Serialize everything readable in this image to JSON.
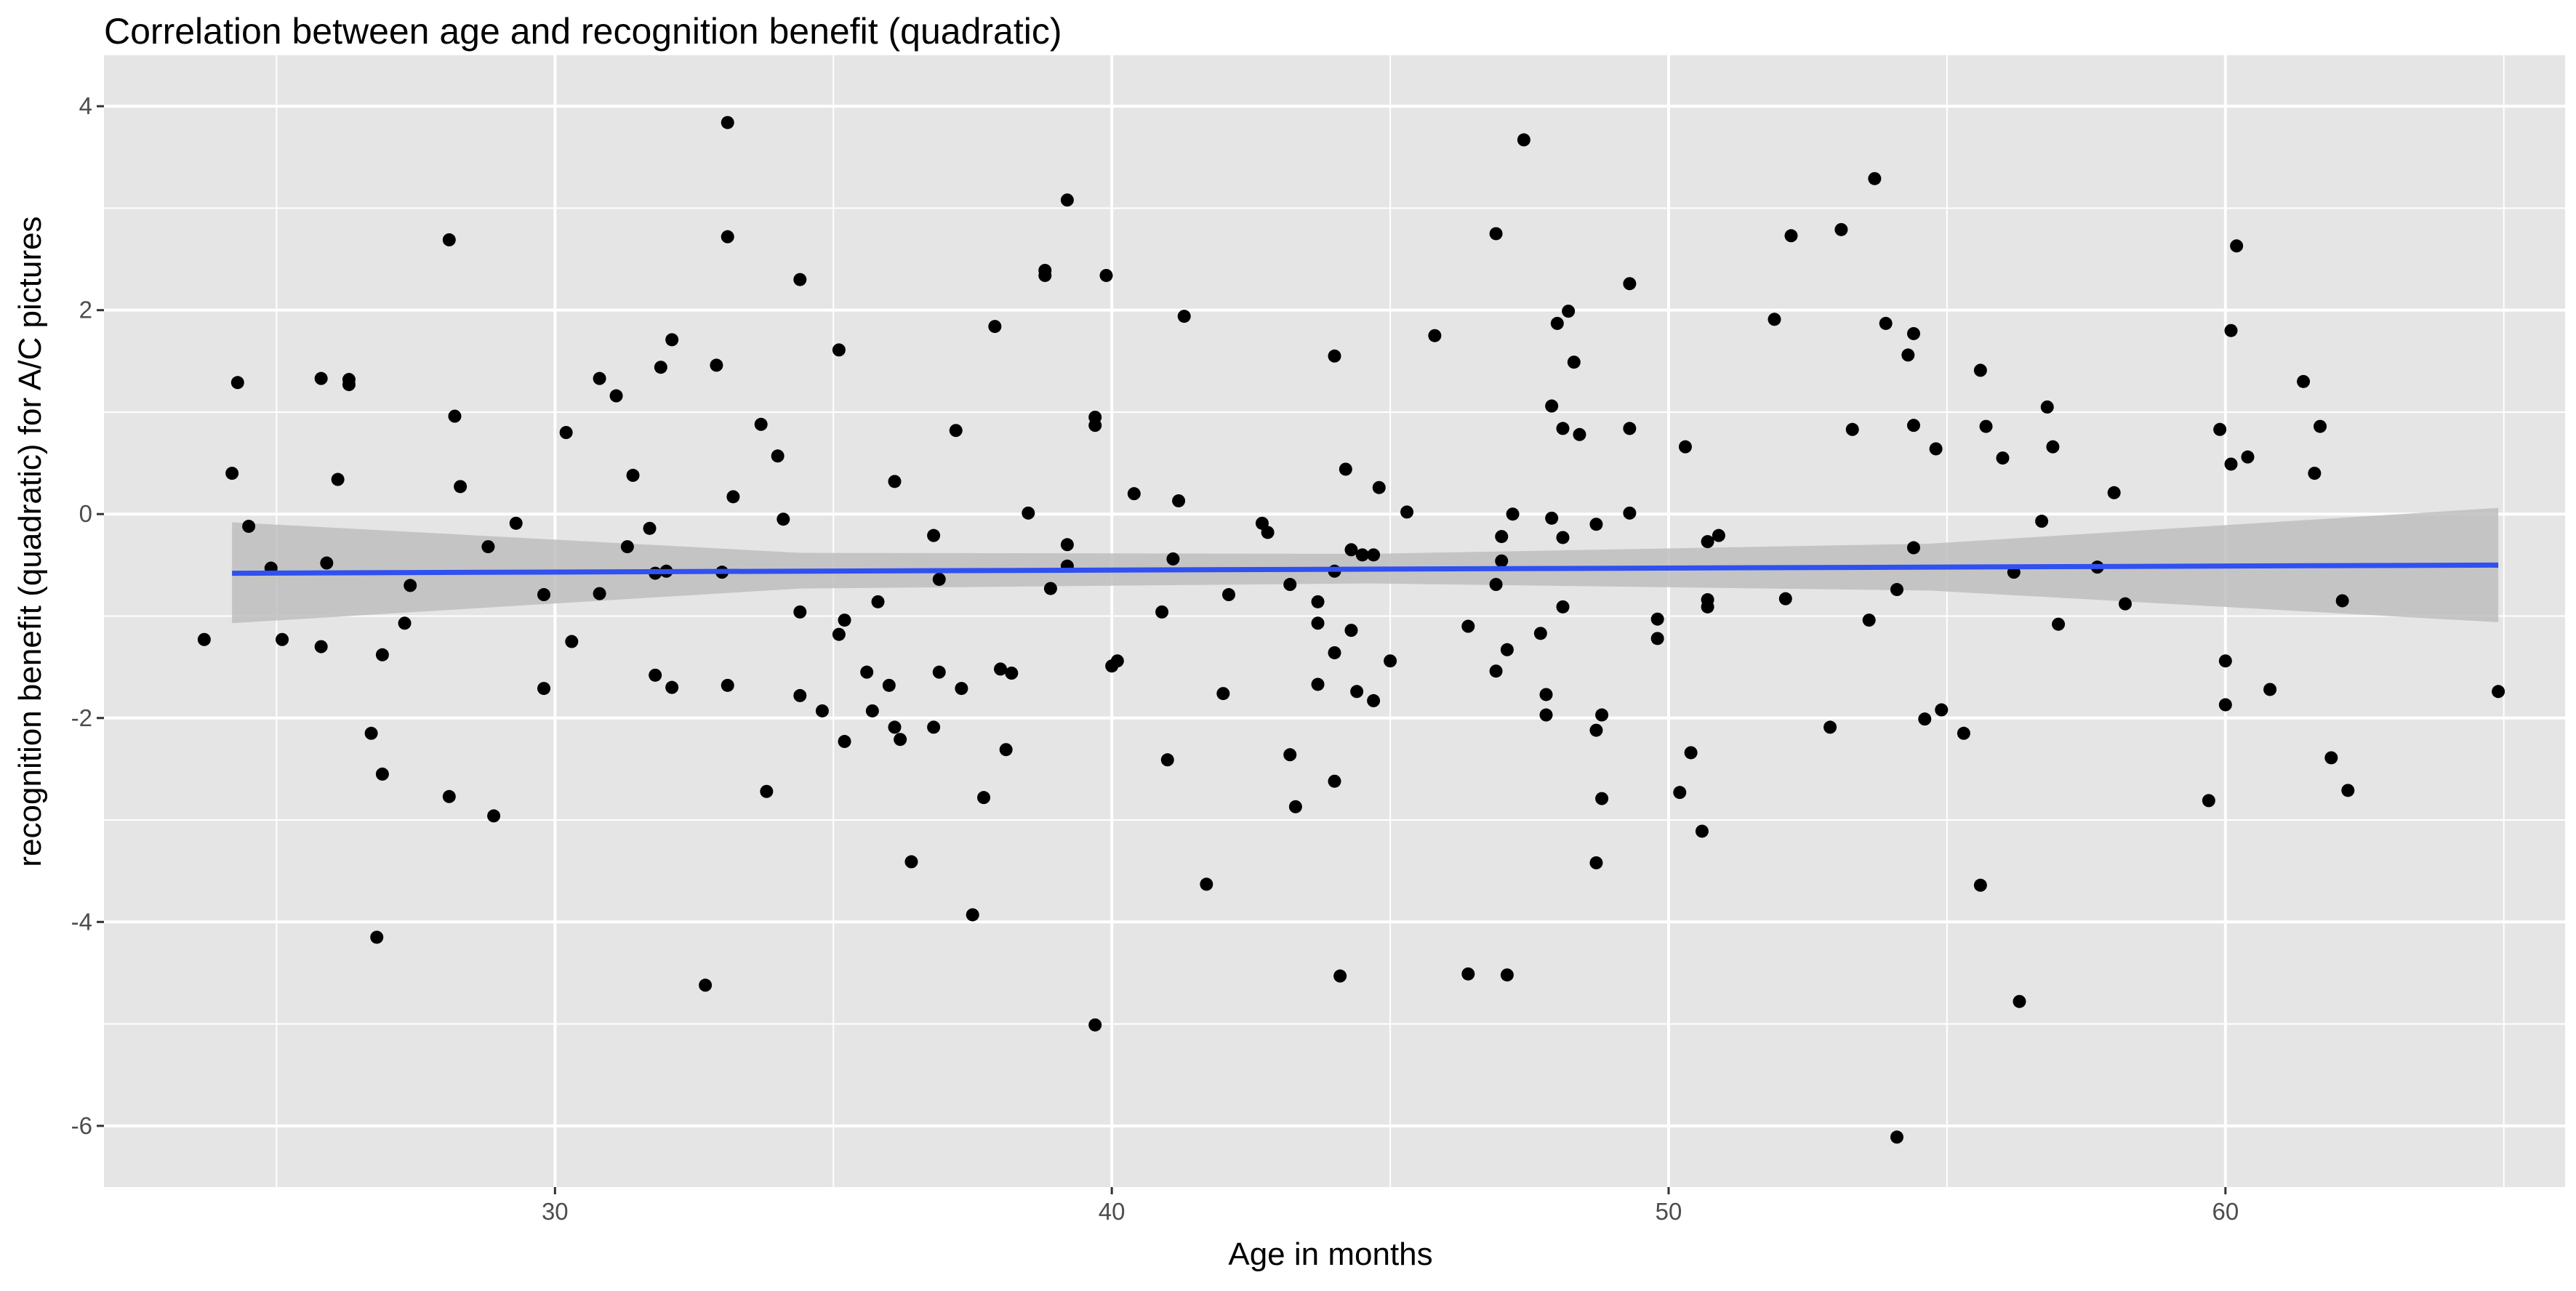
{
  "chart_data": {
    "type": "scatter",
    "title": "Correlation between age and recognition benefit (quadratic)",
    "xlabel": "Age in months",
    "ylabel": "recognition benefit (quadratic) for A/C pictures",
    "xlim": [
      21.9,
      66.1
    ],
    "ylim": [
      -6.6,
      4.5
    ],
    "x_ticks": [
      30,
      40,
      50,
      60
    ],
    "x_tick_labels": [
      "30",
      "40",
      "50",
      "60"
    ],
    "y_ticks": [
      4,
      2,
      0,
      -2,
      -4,
      -6
    ],
    "y_tick_labels": [
      "4",
      "2",
      "0",
      "-2",
      "-4",
      "-6"
    ],
    "grid": true,
    "legend": "none",
    "colors": {
      "panel_background": "#E5E5E5",
      "grid_line": "#FFFFFF",
      "point": "#000000",
      "fit_line": "#3050F0",
      "confidence_band": "#BEBEBE"
    },
    "series": [
      {
        "type": "scatter",
        "points": [
          [
            23.7,
            -1.23
          ],
          [
            24.2,
            0.4
          ],
          [
            24.3,
            1.29
          ],
          [
            24.5,
            -0.12
          ],
          [
            24.9,
            -0.53
          ],
          [
            25.1,
            -1.23
          ],
          [
            25.8,
            1.33
          ],
          [
            25.8,
            -1.3
          ],
          [
            25.9,
            -0.48
          ],
          [
            26.1,
            0.34
          ],
          [
            26.3,
            1.27
          ],
          [
            26.3,
            1.32
          ],
          [
            26.7,
            -2.15
          ],
          [
            26.8,
            -4.15
          ],
          [
            26.9,
            -2.55
          ],
          [
            26.9,
            -1.38
          ],
          [
            27.3,
            -1.07
          ],
          [
            27.4,
            -0.7
          ],
          [
            28.1,
            2.69
          ],
          [
            28.1,
            -2.77
          ],
          [
            28.2,
            0.96
          ],
          [
            28.3,
            0.27
          ],
          [
            28.8,
            -0.32
          ],
          [
            28.9,
            -2.96
          ],
          [
            29.3,
            -0.09
          ],
          [
            29.8,
            -0.79
          ],
          [
            29.8,
            -1.71
          ],
          [
            30.2,
            0.8
          ],
          [
            30.3,
            -1.25
          ],
          [
            30.8,
            1.33
          ],
          [
            30.8,
            -0.78
          ],
          [
            31.1,
            1.16
          ],
          [
            31.3,
            -0.32
          ],
          [
            31.4,
            0.38
          ],
          [
            31.7,
            -0.14
          ],
          [
            31.8,
            -0.58
          ],
          [
            31.8,
            -1.58
          ],
          [
            31.9,
            1.44
          ],
          [
            32.0,
            -0.56
          ],
          [
            32.1,
            1.71
          ],
          [
            32.1,
            -1.7
          ],
          [
            32.7,
            -4.62
          ],
          [
            32.9,
            1.46
          ],
          [
            33.0,
            -0.57
          ],
          [
            33.1,
            2.72
          ],
          [
            33.1,
            3.84
          ],
          [
            33.1,
            -1.68
          ],
          [
            33.2,
            0.17
          ],
          [
            33.7,
            0.88
          ],
          [
            33.8,
            -2.72
          ],
          [
            34.0,
            0.57
          ],
          [
            34.1,
            -0.05
          ],
          [
            34.4,
            -0.96
          ],
          [
            34.4,
            -1.78
          ],
          [
            34.4,
            2.3
          ],
          [
            34.8,
            -1.93
          ],
          [
            35.1,
            -1.18
          ],
          [
            35.1,
            1.61
          ],
          [
            35.2,
            -2.23
          ],
          [
            35.2,
            -1.04
          ],
          [
            35.6,
            -1.55
          ],
          [
            35.7,
            -1.93
          ],
          [
            35.8,
            -0.86
          ],
          [
            36.0,
            -1.68
          ],
          [
            36.1,
            -2.09
          ],
          [
            36.1,
            0.32
          ],
          [
            36.2,
            -2.21
          ],
          [
            36.4,
            -3.41
          ],
          [
            36.8,
            -2.09
          ],
          [
            36.8,
            -0.21
          ],
          [
            36.9,
            -0.64
          ],
          [
            36.9,
            -1.55
          ],
          [
            37.2,
            0.82
          ],
          [
            37.3,
            -1.71
          ],
          [
            37.5,
            -3.93
          ],
          [
            37.7,
            -2.78
          ],
          [
            37.9,
            1.84
          ],
          [
            38.0,
            -1.52
          ],
          [
            38.1,
            -2.31
          ],
          [
            38.2,
            -1.56
          ],
          [
            38.5,
            0.01
          ],
          [
            38.8,
            2.39
          ],
          [
            38.8,
            2.34
          ],
          [
            38.9,
            -0.73
          ],
          [
            39.2,
            3.08
          ],
          [
            39.2,
            -0.3
          ],
          [
            39.2,
            -0.51
          ],
          [
            39.7,
            0.95
          ],
          [
            39.7,
            0.87
          ],
          [
            39.7,
            -5.01
          ],
          [
            39.9,
            2.34
          ],
          [
            40.0,
            -1.49
          ],
          [
            40.1,
            -1.44
          ],
          [
            40.4,
            0.2
          ],
          [
            40.9,
            -0.96
          ],
          [
            41.0,
            -2.41
          ],
          [
            41.1,
            -0.44
          ],
          [
            41.2,
            0.13
          ],
          [
            41.3,
            1.94
          ],
          [
            41.7,
            -3.63
          ],
          [
            42.0,
            -1.76
          ],
          [
            42.1,
            -0.79
          ],
          [
            42.7,
            -0.09
          ],
          [
            42.8,
            -0.18
          ],
          [
            43.2,
            -0.69
          ],
          [
            43.2,
            -2.36
          ],
          [
            43.3,
            -2.87
          ],
          [
            43.7,
            -0.86
          ],
          [
            43.7,
            -1.07
          ],
          [
            43.7,
            -1.67
          ],
          [
            44.0,
            -1.36
          ],
          [
            44.0,
            -2.62
          ],
          [
            44.0,
            -0.56
          ],
          [
            44.0,
            1.55
          ],
          [
            44.1,
            -4.53
          ],
          [
            44.2,
            0.44
          ],
          [
            44.3,
            -1.14
          ],
          [
            44.3,
            -0.35
          ],
          [
            44.4,
            -1.74
          ],
          [
            44.5,
            -0.4
          ],
          [
            44.7,
            -1.83
          ],
          [
            44.7,
            -0.4
          ],
          [
            44.8,
            0.26
          ],
          [
            45.0,
            -1.44
          ],
          [
            45.3,
            0.02
          ],
          [
            45.8,
            1.75
          ],
          [
            46.4,
            -4.51
          ],
          [
            46.4,
            -1.1
          ],
          [
            46.9,
            -0.69
          ],
          [
            46.9,
            -1.54
          ],
          [
            46.9,
            2.75
          ],
          [
            47.0,
            -0.46
          ],
          [
            47.0,
            -0.22
          ],
          [
            47.1,
            -4.52
          ],
          [
            47.1,
            -1.33
          ],
          [
            47.2,
            0.0
          ],
          [
            47.4,
            3.67
          ],
          [
            47.7,
            -1.17
          ],
          [
            47.8,
            -1.97
          ],
          [
            47.8,
            -1.77
          ],
          [
            47.9,
            1.06
          ],
          [
            47.9,
            -0.04
          ],
          [
            48.0,
            1.87
          ],
          [
            48.1,
            0.84
          ],
          [
            48.1,
            -0.23
          ],
          [
            48.1,
            -0.91
          ],
          [
            48.2,
            1.99
          ],
          [
            48.3,
            1.49
          ],
          [
            48.4,
            0.78
          ],
          [
            48.7,
            -0.1
          ],
          [
            48.7,
            -2.12
          ],
          [
            48.7,
            -3.42
          ],
          [
            48.8,
            -1.97
          ],
          [
            48.8,
            -2.79
          ],
          [
            49.3,
            0.84
          ],
          [
            49.3,
            2.26
          ],
          [
            49.3,
            0.01
          ],
          [
            49.8,
            -1.03
          ],
          [
            49.8,
            -1.22
          ],
          [
            50.2,
            -2.73
          ],
          [
            50.3,
            0.66
          ],
          [
            50.4,
            -2.34
          ],
          [
            50.6,
            -3.11
          ],
          [
            50.7,
            -0.91
          ],
          [
            50.7,
            -0.84
          ],
          [
            50.7,
            -0.27
          ],
          [
            50.9,
            -0.21
          ],
          [
            51.9,
            1.91
          ],
          [
            52.1,
            -0.83
          ],
          [
            52.2,
            2.73
          ],
          [
            52.9,
            -2.09
          ],
          [
            53.1,
            2.79
          ],
          [
            53.3,
            0.83
          ],
          [
            53.6,
            -1.04
          ],
          [
            53.7,
            3.29
          ],
          [
            53.9,
            1.87
          ],
          [
            54.1,
            -6.11
          ],
          [
            54.1,
            -0.74
          ],
          [
            54.3,
            1.56
          ],
          [
            54.4,
            1.77
          ],
          [
            54.4,
            0.87
          ],
          [
            54.4,
            -0.33
          ],
          [
            54.6,
            -2.01
          ],
          [
            54.8,
            0.64
          ],
          [
            54.9,
            -1.92
          ],
          [
            55.3,
            -2.15
          ],
          [
            55.6,
            1.41
          ],
          [
            55.6,
            -3.64
          ],
          [
            55.7,
            0.86
          ],
          [
            56.0,
            0.55
          ],
          [
            56.2,
            -0.57
          ],
          [
            56.3,
            -4.78
          ],
          [
            56.7,
            -0.07
          ],
          [
            56.8,
            1.05
          ],
          [
            56.9,
            0.66
          ],
          [
            57.0,
            -1.08
          ],
          [
            57.7,
            -0.52
          ],
          [
            58.0,
            0.21
          ],
          [
            58.2,
            -0.88
          ],
          [
            59.7,
            -2.81
          ],
          [
            59.9,
            0.83
          ],
          [
            60.0,
            -1.87
          ],
          [
            60.0,
            -1.44
          ],
          [
            60.1,
            1.8
          ],
          [
            60.1,
            0.49
          ],
          [
            60.2,
            2.63
          ],
          [
            60.4,
            0.56
          ],
          [
            60.8,
            -1.72
          ],
          [
            61.4,
            1.3
          ],
          [
            61.6,
            0.4
          ],
          [
            61.7,
            0.86
          ],
          [
            61.9,
            -2.39
          ],
          [
            62.1,
            -0.85
          ],
          [
            62.2,
            -2.71
          ],
          [
            64.9,
            -1.74
          ]
        ]
      },
      {
        "type": "line",
        "x": [
          24.2,
          64.9
        ],
        "y": [
          -0.58,
          -0.5
        ]
      },
      {
        "type": "area",
        "x": [
          24.2,
          34.4,
          44.6,
          54.7,
          64.9
        ],
        "ymin": [
          -1.07,
          -0.73,
          -0.68,
          -0.75,
          -1.06
        ],
        "ymax": [
          -0.08,
          -0.38,
          -0.39,
          -0.29,
          0.06
        ]
      }
    ]
  }
}
